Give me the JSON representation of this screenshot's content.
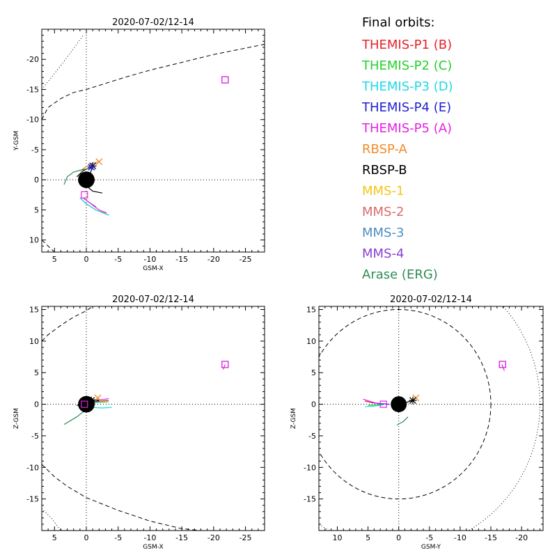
{
  "legend": {
    "title": "Final orbits:",
    "entries": [
      {
        "label": "THEMIS-P1 (B)",
        "color": "#e8212a"
      },
      {
        "label": "THEMIS-P2 (C)",
        "color": "#22d12a"
      },
      {
        "label": "THEMIS-P3 (D)",
        "color": "#1ed8e6"
      },
      {
        "label": "THEMIS-P4 (E)",
        "color": "#1f1fd0"
      },
      {
        "label": "THEMIS-P5 (A)",
        "color": "#e61fe6"
      },
      {
        "label": "RBSP-A",
        "color": "#f08c28"
      },
      {
        "label": "RBSP-B",
        "color": "#000000"
      },
      {
        "label": "MMS-1",
        "color": "#f5c518"
      },
      {
        "label": "MMS-2",
        "color": "#d96b6b"
      },
      {
        "label": "MMS-3",
        "color": "#4a8ec2"
      },
      {
        "label": "MMS-4",
        "color": "#8a3fd1"
      },
      {
        "label": "Arase (ERG)",
        "color": "#2e8b57"
      }
    ]
  },
  "chart_data": [
    {
      "type": "line",
      "title": "2020-07-02/12-14",
      "xlabel": "GSM-X",
      "ylabel": "Y-GSM",
      "xlim": [
        7,
        -28
      ],
      "ylim": [
        12,
        -25
      ],
      "xticks": [
        5,
        0,
        -5,
        -10,
        -15,
        -20,
        -25
      ],
      "yticks": [
        -20,
        -15,
        -10,
        -5,
        0,
        5,
        10
      ],
      "earth_radius": 1.3,
      "boundaries": [
        {
          "kind": "magnetopause",
          "style": "dashed",
          "points": [
            [
              7,
              -10
            ],
            [
              6,
              -12
            ],
            [
              4,
              -13.5
            ],
            [
              2,
              -14.5
            ],
            [
              0,
              -15
            ],
            [
              -3,
              -16
            ],
            [
              -6,
              -17
            ],
            [
              -10,
              -18.2
            ],
            [
              -15,
              -19.5
            ],
            [
              -20,
              -20.8
            ],
            [
              -28,
              -22.5
            ]
          ]
        },
        {
          "kind": "magnetopause",
          "style": "dashed",
          "points": [
            [
              7,
              10
            ],
            [
              6,
              11
            ],
            [
              5,
              12
            ]
          ]
        },
        {
          "kind": "bow-shock",
          "style": "dotted",
          "points": [
            [
              7,
              -15
            ],
            [
              5.5,
              -17
            ],
            [
              4,
              -19
            ],
            [
              2.2,
              -21.5
            ],
            [
              0.5,
              -24
            ]
          ]
        }
      ],
      "orbits": [
        {
          "craft": "THEMIS-P1 (B)",
          "color": "#e8212a",
          "points": [
            [
              1,
              3
            ],
            [
              0,
              4
            ],
            [
              -1.5,
              5
            ],
            [
              -3,
              5.6
            ]
          ]
        },
        {
          "craft": "THEMIS-P2 (C)",
          "color": "#22d12a",
          "points": [
            [
              1,
              3
            ],
            [
              0,
              4
            ],
            [
              -1.5,
              5
            ],
            [
              -3.3,
              5.8
            ]
          ]
        },
        {
          "craft": "THEMIS-P3 (D)",
          "color": "#1ed8e6",
          "points": [
            [
              1,
              3
            ],
            [
              0,
              4
            ],
            [
              -1.5,
              5
            ],
            [
              -3.6,
              5.9
            ]
          ]
        },
        {
          "craft": "THEMIS-P4 (E)",
          "color": "#1f1fd0",
          "points": [
            [
              0.5,
              3
            ],
            [
              -0.5,
              3.8
            ],
            [
              -1.5,
              4.5
            ]
          ]
        },
        {
          "craft": "THEMIS-P5 (A)",
          "color": "#e61fe6",
          "points": [
            [
              0.5,
              3
            ],
            [
              -0.5,
              3.8
            ],
            [
              -2,
              5
            ],
            [
              -3.2,
              5.5
            ]
          ]
        },
        {
          "craft": "RBSP-A",
          "color": "#f08c28",
          "points": [
            [
              1,
              -1.5
            ],
            [
              0,
              -2.2
            ],
            [
              -1,
              -2.7
            ],
            [
              -1.8,
              -3
            ]
          ]
        },
        {
          "craft": "RBSP-B",
          "color": "#000000",
          "points": [
            [
              1.5,
              -0.5
            ],
            [
              0.5,
              -1.5
            ],
            [
              -0.5,
              -2
            ],
            [
              -1,
              -2.4
            ],
            [
              -0.5,
              -0.6
            ],
            [
              0,
              1
            ],
            [
              -1,
              1.9
            ],
            [
              -2.5,
              2.2
            ]
          ]
        },
        {
          "craft": "Arase (ERG)",
          "color": "#2e8b57",
          "points": [
            [
              3.5,
              0.8
            ],
            [
              3,
              -0.5
            ],
            [
              2,
              -1.3
            ],
            [
              0.5,
              -1.7
            ],
            [
              -0.5,
              -1.9
            ]
          ]
        }
      ],
      "markers": [
        {
          "craft": "RBSP-A",
          "color": "#f08c28",
          "shape": "x",
          "x": -2,
          "y": -3
        },
        {
          "craft": "RBSP-B",
          "color": "#000000",
          "shape": "asterisk",
          "x": -1,
          "y": -2.3
        },
        {
          "craft": "THEMIS-P4 (E)",
          "color": "#1f1fd0",
          "shape": "asterisk",
          "x": -0.8,
          "y": -2.1
        },
        {
          "craft": "THEMIS-P5 (A)",
          "color": "#e61fe6",
          "shape": "square",
          "x": 0.3,
          "y": 2.5
        },
        {
          "craft": "MMS-4",
          "color": "#8a3fd1",
          "shape": "square",
          "x": -21.8,
          "y": -16.6
        },
        {
          "craft": "THEMIS-P5 (A)",
          "color": "#e61fe6",
          "shape": "square",
          "x": -21.8,
          "y": -16.6
        }
      ]
    },
    {
      "type": "line",
      "title": "2020-07-02/12-14",
      "xlabel": "GSM-X",
      "ylabel": "Z-GSM",
      "xlim": [
        7,
        -28
      ],
      "ylim": [
        -20,
        15.5
      ],
      "xticks": [
        5,
        0,
        -5,
        -10,
        -15,
        -20,
        -25
      ],
      "yticks": [
        -15,
        -10,
        -5,
        0,
        5,
        10,
        15
      ],
      "earth_radius": 1.3,
      "boundaries": [
        {
          "kind": "magnetopause",
          "style": "dashed",
          "points": [
            [
              7,
              10
            ],
            [
              6,
              11
            ],
            [
              4,
              12.5
            ],
            [
              2,
              13.8
            ],
            [
              0,
              14.8
            ],
            [
              -1,
              15.5
            ]
          ]
        },
        {
          "kind": "magnetopause",
          "style": "dashed",
          "points": [
            [
              7,
              -9.5
            ],
            [
              5,
              -11.5
            ],
            [
              3,
              -13
            ],
            [
              0,
              -14.8
            ],
            [
              -5,
              -16.8
            ],
            [
              -10,
              -18.5
            ],
            [
              -15,
              -19.7
            ],
            [
              -18,
              -20
            ]
          ]
        },
        {
          "kind": "bow-shock",
          "style": "dotted",
          "points": [
            [
              7,
              -16.5
            ],
            [
              5.5,
              -18
            ],
            [
              4,
              -20
            ]
          ]
        }
      ],
      "orbits": [
        {
          "craft": "THEMIS-P1 (B)",
          "color": "#e8212a",
          "points": [
            [
              0,
              0.3
            ],
            [
              -2,
              0.5
            ],
            [
              -3.5,
              0.6
            ]
          ]
        },
        {
          "craft": "THEMIS-P2 (C)",
          "color": "#22d12a",
          "points": [
            [
              0,
              0.2
            ],
            [
              -2,
              0.3
            ],
            [
              -3.5,
              0.4
            ]
          ]
        },
        {
          "craft": "THEMIS-P3 (D)",
          "color": "#1ed8e6",
          "points": [
            [
              1,
              0
            ],
            [
              -1,
              -0.5
            ],
            [
              -2.5,
              -0.6
            ],
            [
              -4,
              -0.5
            ]
          ]
        },
        {
          "craft": "THEMIS-P4 (E)",
          "color": "#1f1fd0",
          "points": [
            [
              0.5,
              0.2
            ],
            [
              -1,
              0.4
            ],
            [
              -2,
              0.5
            ]
          ]
        },
        {
          "craft": "THEMIS-P5 (A)",
          "color": "#e61fe6",
          "points": [
            [
              1,
              0.4
            ],
            [
              -1,
              0.6
            ],
            [
              -3,
              0.8
            ],
            [
              -3.5,
              0.9
            ]
          ]
        },
        {
          "craft": "THEMIS-P5 (A)",
          "color": "#e61fe6",
          "points": [
            [
              -21.8,
              6.3
            ],
            [
              -21.5,
              5.5
            ]
          ]
        },
        {
          "craft": "RBSP-A",
          "color": "#f08c28",
          "points": [
            [
              0,
              0.2
            ],
            [
              -1,
              0.6
            ],
            [
              -2,
              1
            ]
          ]
        },
        {
          "craft": "RBSP-B",
          "color": "#000000",
          "points": [
            [
              1.5,
              -0.2
            ],
            [
              0,
              0.5
            ],
            [
              -1,
              0.7
            ],
            [
              -2,
              0.6
            ]
          ]
        },
        {
          "craft": "MMS-1",
          "color": "#f5c518",
          "points": [
            [
              1,
              -0.6
            ],
            [
              0,
              -1
            ],
            [
              -0.3,
              -1.2
            ]
          ]
        },
        {
          "craft": "Arase (ERG)",
          "color": "#2e8b57",
          "points": [
            [
              3.5,
              -3.2
            ],
            [
              2.5,
              -2.6
            ],
            [
              1.5,
              -2
            ],
            [
              0.5,
              -1.2
            ],
            [
              0,
              -0.5
            ]
          ]
        }
      ],
      "markers": [
        {
          "craft": "RBSP-A",
          "color": "#f08c28",
          "shape": "x",
          "x": -1.8,
          "y": 1
        },
        {
          "craft": "RBSP-B",
          "color": "#000000",
          "shape": "asterisk",
          "x": -0.8,
          "y": 0.6
        },
        {
          "craft": "THEMIS-P5 (A)",
          "color": "#e61fe6",
          "shape": "square",
          "x": 0.3,
          "y": 0
        },
        {
          "craft": "MMS-4",
          "color": "#8a3fd1",
          "shape": "square",
          "x": -21.8,
          "y": 6.3
        },
        {
          "craft": "THEMIS-P5 (A)",
          "color": "#e61fe6",
          "shape": "square",
          "x": -21.8,
          "y": 6.3
        }
      ]
    },
    {
      "type": "line",
      "title": "2020-07-02/12-14",
      "xlabel": "GSM-Y",
      "ylabel": "Z-GSM",
      "xlim": [
        13,
        -23.5
      ],
      "ylim": [
        -20,
        15.5
      ],
      "xticks": [
        10,
        5,
        0,
        -5,
        -10,
        -15,
        -20
      ],
      "yticks": [
        -15,
        -10,
        -5,
        0,
        5,
        10,
        15
      ],
      "earth_radius": 1.3,
      "boundaries": [
        {
          "kind": "magnetopause",
          "style": "dashed",
          "circle": {
            "cx": 0,
            "cy": 0,
            "r": 15
          }
        },
        {
          "kind": "bow-shock",
          "style": "dotted",
          "circle": {
            "cx": 0,
            "cy": 0,
            "r": 23
          }
        }
      ],
      "orbits": [
        {
          "craft": "THEMIS-P1 (B)",
          "color": "#e8212a",
          "points": [
            [
              5.5,
              0.5
            ],
            [
              4,
              0.2
            ],
            [
              2.5,
              0
            ]
          ]
        },
        {
          "craft": "THEMIS-P2 (C)",
          "color": "#22d12a",
          "points": [
            [
              5,
              -0.2
            ],
            [
              3.5,
              -0.1
            ],
            [
              2.5,
              0
            ]
          ]
        },
        {
          "craft": "THEMIS-P3 (D)",
          "color": "#1ed8e6",
          "points": [
            [
              5.5,
              -0.4
            ],
            [
              4,
              -0.3
            ],
            [
              2.5,
              -0.1
            ]
          ]
        },
        {
          "craft": "THEMIS-P4 (E)",
          "color": "#1f1fd0",
          "points": [
            [
              4.5,
              0.3
            ],
            [
              3,
              0.1
            ],
            [
              1.5,
              0
            ]
          ]
        },
        {
          "craft": "THEMIS-P5 (A)",
          "color": "#e61fe6",
          "points": [
            [
              5.8,
              0.8
            ],
            [
              4.5,
              0.4
            ],
            [
              3,
              0
            ]
          ]
        },
        {
          "craft": "THEMIS-P5 (A)",
          "color": "#e61fe6",
          "points": [
            [
              -16.8,
              6.3
            ],
            [
              -17.2,
              5.3
            ]
          ]
        },
        {
          "craft": "RBSP-A",
          "color": "#f08c28",
          "points": [
            [
              -0.5,
              0
            ],
            [
              -1.5,
              0.4
            ],
            [
              -2.8,
              1
            ]
          ]
        },
        {
          "craft": "RBSP-B",
          "color": "#000000",
          "points": [
            [
              0.5,
              0
            ],
            [
              -1,
              0.2
            ],
            [
              -2.3,
              0.6
            ]
          ]
        },
        {
          "craft": "Arase (ERG)",
          "color": "#2e8b57",
          "points": [
            [
              0.3,
              -3.3
            ],
            [
              -0.8,
              -2.7
            ],
            [
              -1.5,
              -2
            ]
          ]
        }
      ],
      "markers": [
        {
          "craft": "RBSP-A",
          "color": "#f08c28",
          "shape": "x",
          "x": -2.8,
          "y": 1
        },
        {
          "craft": "RBSP-B",
          "color": "#000000",
          "shape": "asterisk",
          "x": -2.3,
          "y": 0.6
        },
        {
          "craft": "THEMIS-P5 (A)",
          "color": "#e61fe6",
          "shape": "square",
          "x": 2.5,
          "y": 0
        },
        {
          "craft": "MMS-4",
          "color": "#8a3fd1",
          "shape": "square",
          "x": -16.9,
          "y": 6.3
        },
        {
          "craft": "THEMIS-P5 (A)",
          "color": "#e61fe6",
          "shape": "square",
          "x": -16.9,
          "y": 6.3
        }
      ]
    }
  ]
}
